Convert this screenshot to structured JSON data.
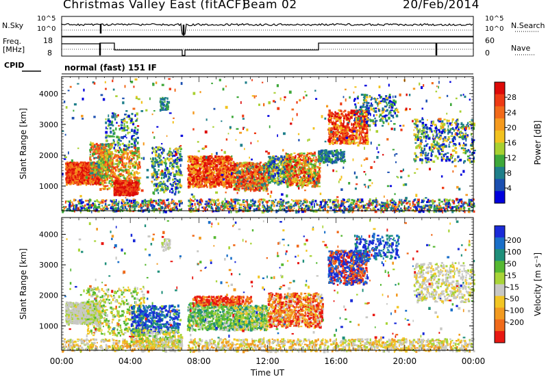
{
  "title": {
    "site": "Christmas Valley East (fitACF)",
    "beam": "Beam 02",
    "date": "20/Feb/2014"
  },
  "strips": {
    "nsky_label": "N.Sky",
    "nsky_ticks": [
      "10^5",
      "10^0"
    ],
    "nsearch_label": "N.Search",
    "nsearch_ticks": [
      "10^5",
      "10^0"
    ],
    "freq_label": "Freq.",
    "freq_unit": "[MHz]",
    "freq_ticks": [
      "18",
      "8"
    ],
    "nave_label": "Nave",
    "nave_ticks": [
      "60",
      "0"
    ],
    "cpid_label": "CPID",
    "cpid_value": "normal (fast) 151 IF"
  },
  "chart_data": [
    {
      "type": "heatmap",
      "name": "power",
      "ylabel": "Slant Range [km]",
      "yticks": [
        "1000",
        "2000",
        "3000",
        "4000"
      ],
      "ylim": [
        200,
        4550
      ],
      "xlim": [
        0,
        24
      ],
      "xticks": [
        "00:00",
        "04:00",
        "08:00",
        "12:00",
        "16:00",
        "20:00",
        "00:00"
      ],
      "colorbar": {
        "label": "Power [dB]",
        "ticks": [
          "4",
          "8",
          "12",
          "16",
          "20",
          "24",
          "28"
        ],
        "colors": [
          "#0000dd",
          "#1b4fb0",
          "#1f7f8a",
          "#3ea83a",
          "#a8d030",
          "#f2c21f",
          "#f59a1e",
          "#f26a1a",
          "#ee3a14",
          "#dd0a08"
        ]
      }
    },
    {
      "type": "heatmap",
      "name": "velocity",
      "ylabel": "Slant Range [km]",
      "yticks": [
        "1000",
        "2000",
        "3000",
        "4000"
      ],
      "ylim": [
        200,
        4550
      ],
      "xlim": [
        0,
        24
      ],
      "xticks": [
        "00:00",
        "04:00",
        "08:00",
        "12:00",
        "16:00",
        "20:00",
        "00:00"
      ],
      "xlabel": "Time UT",
      "colorbar": {
        "label": "Velocity [m s⁻¹]",
        "ticks": [
          "200",
          "100",
          "50",
          "15",
          "-15",
          "-50",
          "-100",
          "-200"
        ],
        "colors": [
          "#1a2bd8",
          "#1a6fc8",
          "#1f8f7a",
          "#55b832",
          "#a8d438",
          "#c8c8c4",
          "#f2c624",
          "#f29a20",
          "#f06a1a",
          "#e81812"
        ]
      }
    }
  ]
}
